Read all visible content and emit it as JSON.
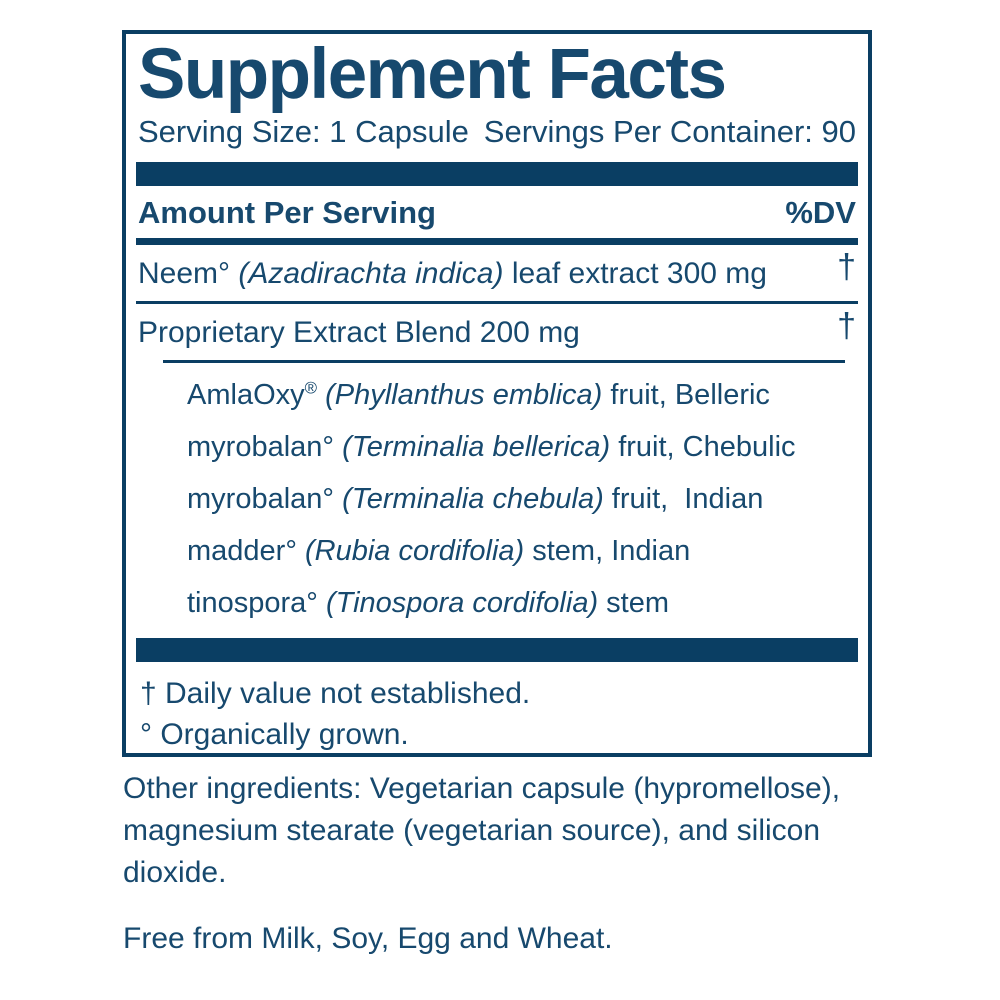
{
  "colors": {
    "ink": "#17496e",
    "bar": "#0a3e63"
  },
  "panel": {
    "title": "Supplement Facts",
    "serving_size": "Serving Size: 1 Capsule",
    "servings_per_container": "Servings Per Container: 90",
    "amount_header": "Amount Per Serving",
    "dv_header": "%DV",
    "rows": [
      {
        "name": "neem",
        "segments": [
          {
            "t": "Neem° "
          },
          {
            "t": "(Azadirachta indica)",
            "i": true
          },
          {
            "t": " leaf extract 300 mg"
          }
        ],
        "dv": "†"
      },
      {
        "name": "proprietary-extract-blend",
        "segments": [
          {
            "t": "Proprietary Extract Blend 200 mg"
          }
        ],
        "dv": "†"
      }
    ],
    "blend": {
      "segments": [
        {
          "t": "AmlaOxy"
        },
        {
          "t": "®",
          "s": true
        },
        {
          "t": " "
        },
        {
          "t": "(Phyllanthus emblica)",
          "i": true
        },
        {
          "t": " fruit, Belleric\nmyrobalan° "
        },
        {
          "t": "(Terminalia bellerica)",
          "i": true
        },
        {
          "t": " fruit, Chebulic\nmyrobalan° "
        },
        {
          "t": "(Terminalia chebula)",
          "i": true
        },
        {
          "t": " fruit,  Indian\nmadder° "
        },
        {
          "t": "(Rubia cordifolia)",
          "i": true
        },
        {
          "t": " stem, Indian\ntinospora° "
        },
        {
          "t": "(Tinospora cordifolia)",
          "i": true
        },
        {
          "t": " stem"
        }
      ]
    },
    "footnotes": [
      "† Daily value not established.",
      "° Organically grown."
    ]
  },
  "below_panel": {
    "other_ingredients": "Other ingredients: Vegetarian capsule (hypromellose),\nmagnesium stearate (vegetarian source), and silicon\ndioxide.",
    "free_from": "Free from Milk, Soy, Egg and Wheat."
  }
}
